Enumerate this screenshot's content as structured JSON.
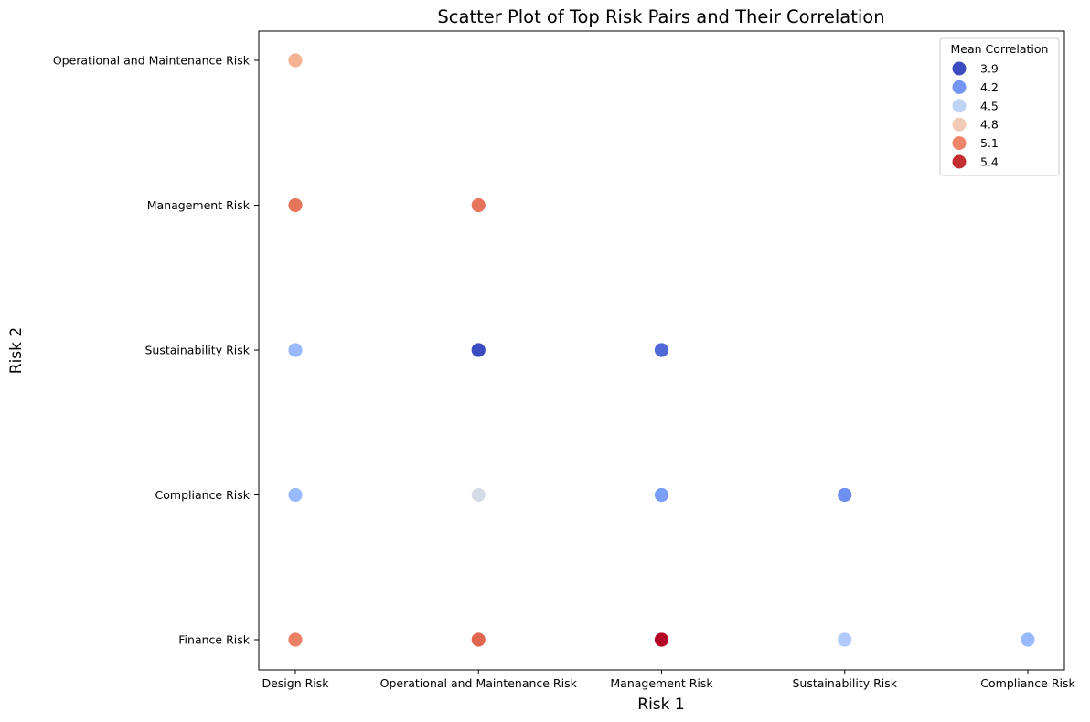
{
  "chart_data": {
    "type": "scatter",
    "title": "Scatter Plot of Top Risk Pairs and Their Correlation",
    "xlabel": "Risk 1",
    "ylabel": "Risk 2",
    "x_categories": [
      "Design Risk",
      "Operational and Maintenance Risk",
      "Management Risk",
      "Sustainability Risk",
      "Compliance Risk"
    ],
    "y_categories": [
      "Finance Risk",
      "Compliance Risk",
      "Sustainability Risk",
      "Management Risk",
      "Operational and Maintenance Risk"
    ],
    "grid": false,
    "colormap": "coolwarm",
    "legend": {
      "title": "Mean Correlation",
      "placement": "top-right",
      "entries": [
        {
          "label": "3.9",
          "value": 3.9,
          "color": "#3b4cc0"
        },
        {
          "label": "4.2",
          "value": 4.2,
          "color": "#7396f5"
        },
        {
          "label": "4.5",
          "value": 4.5,
          "color": "#c0d4f5"
        },
        {
          "label": "4.8",
          "value": 4.8,
          "color": "#f2cbb7"
        },
        {
          "label": "5.1",
          "value": 5.1,
          "color": "#ee8468"
        },
        {
          "label": "5.4",
          "value": 5.4,
          "color": "#c32e31"
        }
      ]
    },
    "points": [
      {
        "x": "Design Risk",
        "y": "Operational and Maintenance Risk",
        "value": 4.95,
        "color": "#f4b394"
      },
      {
        "x": "Design Risk",
        "y": "Management Risk",
        "value": 5.25,
        "color": "#e7755b"
      },
      {
        "x": "Design Risk",
        "y": "Sustainability Risk",
        "value": 4.35,
        "color": "#98b9fe"
      },
      {
        "x": "Design Risk",
        "y": "Compliance Risk",
        "value": 4.35,
        "color": "#98b9fe"
      },
      {
        "x": "Design Risk",
        "y": "Finance Risk",
        "value": 5.2,
        "color": "#ec8166"
      },
      {
        "x": "Operational and Maintenance Risk",
        "y": "Management Risk",
        "value": 5.25,
        "color": "#e7755b"
      },
      {
        "x": "Operational and Maintenance Risk",
        "y": "Sustainability Risk",
        "value": 3.9,
        "color": "#3b4cc0"
      },
      {
        "x": "Operational and Maintenance Risk",
        "y": "Compliance Risk",
        "value": 4.6,
        "color": "#d4dbe6"
      },
      {
        "x": "Operational and Maintenance Risk",
        "y": "Finance Risk",
        "value": 5.3,
        "color": "#e16751"
      },
      {
        "x": "Management Risk",
        "y": "Sustainability Risk",
        "value": 4.0,
        "color": "#4f69d9"
      },
      {
        "x": "Management Risk",
        "y": "Compliance Risk",
        "value": 4.25,
        "color": "#7b9ff9"
      },
      {
        "x": "Management Risk",
        "y": "Finance Risk",
        "value": 5.55,
        "color": "#b40426"
      },
      {
        "x": "Sustainability Risk",
        "y": "Compliance Risk",
        "value": 4.15,
        "color": "#6c8ff1"
      },
      {
        "x": "Sustainability Risk",
        "y": "Finance Risk",
        "value": 4.45,
        "color": "#afcafc"
      },
      {
        "x": "Compliance Risk",
        "y": "Finance Risk",
        "value": 4.35,
        "color": "#98b9fe"
      }
    ]
  }
}
